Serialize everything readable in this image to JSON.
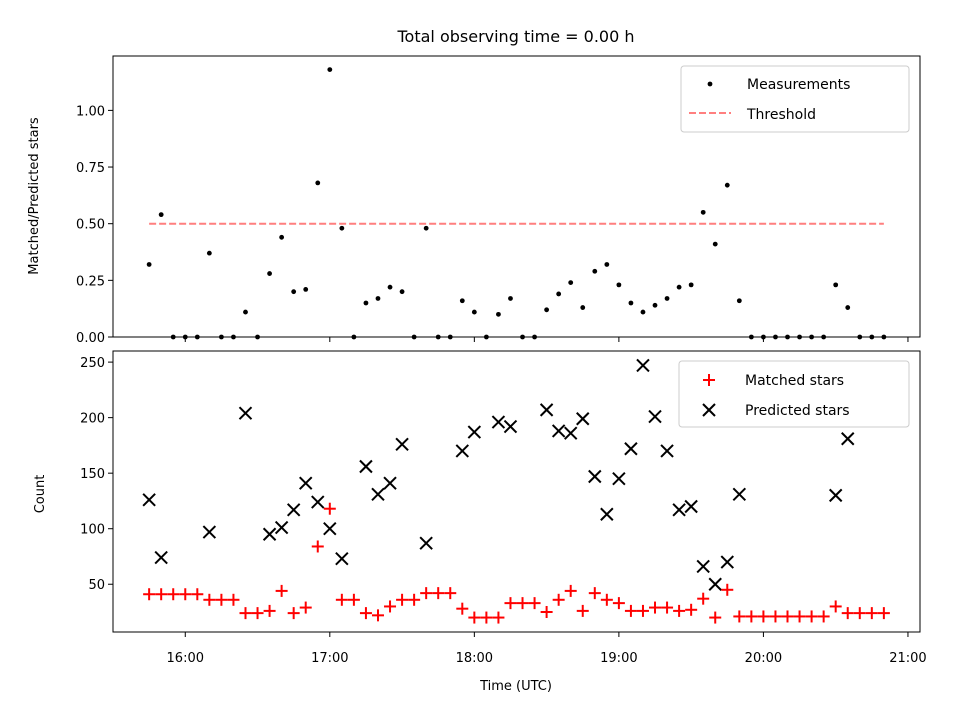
{
  "title": "Total observing time = 0.00 h",
  "chart_data": [
    {
      "type": "scatter",
      "ylabel": "Matched/Predicted stars",
      "ylim": [
        0,
        1.24
      ],
      "yticks": [
        "0.00",
        "0.25",
        "0.50",
        "0.75",
        "1.00"
      ],
      "ytick_values": [
        0,
        0.25,
        0.5,
        0.75,
        1.0
      ],
      "xlim": [
        "15:30",
        "21:05"
      ],
      "legend_position": "upper-right",
      "threshold": {
        "name": "Threshold",
        "value": 0.5,
        "x_range": [
          "15:45",
          "20:50"
        ],
        "color": "#ff7f7f"
      },
      "series": [
        {
          "name": "Measurements",
          "color": "#000000",
          "x": [
            "15:45",
            "15:50",
            "15:55",
            "16:00",
            "16:05",
            "16:10",
            "16:15",
            "16:20",
            "16:25",
            "16:30",
            "16:35",
            "16:40",
            "16:45",
            "16:50",
            "16:55",
            "17:00",
            "17:05",
            "17:10",
            "17:15",
            "17:20",
            "17:25",
            "17:30",
            "17:35",
            "17:40",
            "17:45",
            "17:50",
            "17:55",
            "18:00",
            "18:05",
            "18:10",
            "18:15",
            "18:20",
            "18:25",
            "18:30",
            "18:35",
            "18:40",
            "18:45",
            "18:50",
            "18:55",
            "19:00",
            "19:05",
            "19:10",
            "19:15",
            "19:20",
            "19:25",
            "19:30",
            "19:35",
            "19:40",
            "19:45",
            "19:50",
            "19:55",
            "20:00",
            "20:05",
            "20:10",
            "20:15",
            "20:20",
            "20:25",
            "20:30",
            "20:35",
            "20:40",
            "20:45",
            "20:50"
          ],
          "y": [
            0.32,
            0.54,
            0,
            0,
            0,
            0.37,
            0,
            0,
            0.11,
            0,
            0.28,
            0.44,
            0.2,
            0.21,
            0.68,
            1.18,
            0.48,
            0,
            0.15,
            0.17,
            0.22,
            0.2,
            0,
            0.48,
            0,
            0,
            0.16,
            0.11,
            0,
            0.1,
            0.17,
            0,
            0,
            0.12,
            0.19,
            0.24,
            0.13,
            0.29,
            0.32,
            0.23,
            0.15,
            0.11,
            0.14,
            0.17,
            0.22,
            0.23,
            0.55,
            0.41,
            0.67,
            0.16,
            0,
            0,
            0,
            0,
            0,
            0,
            0,
            0.23,
            0.13,
            0,
            0,
            0
          ]
        }
      ]
    },
    {
      "type": "scatter",
      "xlabel": "Time (UTC)",
      "ylabel": "Count",
      "ylim": [
        7,
        260
      ],
      "yticks": [
        "50",
        "100",
        "150",
        "200",
        "250"
      ],
      "ytick_values": [
        50,
        100,
        150,
        200,
        250
      ],
      "xlim": [
        "15:30",
        "21:05"
      ],
      "xticks": [
        "16:00",
        "17:00",
        "18:00",
        "19:00",
        "20:00",
        "21:00"
      ],
      "legend_position": "upper-right",
      "series": [
        {
          "name": "Matched stars",
          "color": "#ff0000",
          "marker": "plus",
          "x": [
            "15:45",
            "15:50",
            "15:55",
            "16:00",
            "16:05",
            "16:10",
            "16:15",
            "16:20",
            "16:25",
            "16:30",
            "16:35",
            "16:40",
            "16:45",
            "16:50",
            "16:55",
            "17:00",
            "17:05",
            "17:10",
            "17:15",
            "17:20",
            "17:25",
            "17:30",
            "17:35",
            "17:40",
            "17:45",
            "17:50",
            "17:55",
            "18:00",
            "18:05",
            "18:10",
            "18:15",
            "18:20",
            "18:25",
            "18:30",
            "18:35",
            "18:40",
            "18:45",
            "18:50",
            "18:55",
            "19:00",
            "19:05",
            "19:10",
            "19:15",
            "19:20",
            "19:25",
            "19:30",
            "19:35",
            "19:40",
            "19:45",
            "19:50",
            "19:55",
            "20:00",
            "20:05",
            "20:10",
            "20:15",
            "20:20",
            "20:25",
            "20:30",
            "20:35",
            "20:40",
            "20:45",
            "20:50"
          ],
          "y": [
            41,
            41,
            41,
            41,
            41,
            36,
            36,
            36,
            24,
            24,
            26,
            44,
            24,
            29,
            84,
            118,
            36,
            36,
            24,
            22,
            30,
            36,
            36,
            42,
            42,
            42,
            28,
            20,
            20,
            20,
            33,
            33,
            33,
            25,
            36,
            44,
            26,
            42,
            36,
            33,
            26,
            26,
            29,
            29,
            26,
            27,
            37,
            20,
            45,
            21,
            21,
            21,
            21,
            21,
            21,
            21,
            21,
            30,
            24,
            24,
            24,
            24
          ]
        },
        {
          "name": "Predicted stars",
          "color": "#000000",
          "marker": "x",
          "x": [
            "15:45",
            "15:50",
            "16:10",
            "16:25",
            "16:35",
            "16:40",
            "16:45",
            "16:50",
            "16:55",
            "17:00",
            "17:05",
            "17:15",
            "17:20",
            "17:25",
            "17:30",
            "17:40",
            "17:55",
            "18:00",
            "18:10",
            "18:15",
            "18:30",
            "18:35",
            "18:40",
            "18:45",
            "18:50",
            "18:55",
            "19:00",
            "19:05",
            "19:10",
            "19:15",
            "19:20",
            "19:25",
            "19:30",
            "19:35",
            "19:40",
            "19:45",
            "19:50",
            "20:30",
            "20:35"
          ],
          "y": [
            126,
            74,
            97,
            204,
            95,
            101,
            117,
            141,
            124,
            100,
            73,
            156,
            131,
            141,
            176,
            87,
            170,
            187,
            196,
            192,
            207,
            188,
            186,
            199,
            147,
            113,
            145,
            172,
            247,
            201,
            170,
            117,
            120,
            66,
            50,
            70,
            131,
            130,
            181
          ]
        }
      ]
    }
  ]
}
